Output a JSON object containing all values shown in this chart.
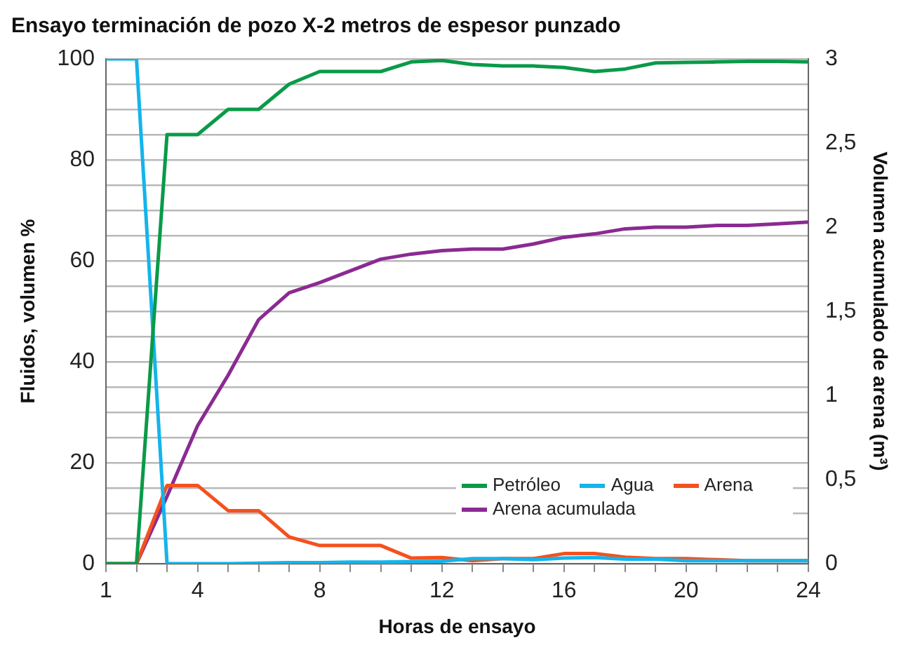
{
  "chart_data": {
    "type": "line",
    "title": "Ensayo terminación de pozo X-2 metros de espesor punzado",
    "xlabel": "Horas de ensayo",
    "ylabel": "Fluidos, volumen %",
    "y2label": "Volumen acumulado de arena (m³)",
    "x": [
      1,
      2,
      3,
      4,
      5,
      6,
      7,
      8,
      9,
      10,
      11,
      12,
      13,
      14,
      15,
      16,
      17,
      18,
      19,
      20,
      21,
      22,
      23,
      24
    ],
    "xlim": [
      1,
      24
    ],
    "xticks": [
      1,
      {
        "value": 2,
        "label": null
      },
      {
        "value": 3,
        "label": null
      },
      4,
      {
        "value": 5,
        "label": null
      },
      {
        "value": 6,
        "label": null
      },
      {
        "value": 7,
        "label": null
      },
      8,
      {
        "value": 9,
        "label": null
      },
      {
        "value": 10,
        "label": null
      },
      {
        "value": 11,
        "label": null
      },
      12,
      {
        "value": 13,
        "label": null
      },
      {
        "value": 14,
        "label": null
      },
      {
        "value": 15,
        "label": null
      },
      16,
      {
        "value": 17,
        "label": null
      },
      {
        "value": 18,
        "label": null
      },
      {
        "value": 19,
        "label": null
      },
      20,
      {
        "value": 21,
        "label": null
      },
      {
        "value": 22,
        "label": null
      },
      {
        "value": 23,
        "label": null
      },
      24
    ],
    "ylim": [
      0,
      100
    ],
    "yticks": [
      0,
      {
        "value": 5,
        "label": null
      },
      {
        "value": 10,
        "label": null
      },
      {
        "value": 15,
        "label": null
      },
      20,
      {
        "value": 25,
        "label": null
      },
      {
        "value": 30,
        "label": null
      },
      {
        "value": 35,
        "label": null
      },
      40,
      {
        "value": 45,
        "label": null
      },
      {
        "value": 50,
        "label": null
      },
      {
        "value": 55,
        "label": null
      },
      60,
      {
        "value": 65,
        "label": null
      },
      {
        "value": 70,
        "label": null
      },
      {
        "value": 75,
        "label": null
      },
      80,
      {
        "value": 85,
        "label": null
      },
      {
        "value": 90,
        "label": null
      },
      {
        "value": 95,
        "label": null
      },
      100
    ],
    "y2lim": [
      0,
      3
    ],
    "y2ticks": [
      0,
      {
        "value": 0.5,
        "label": "0,5"
      },
      1,
      {
        "value": 1.5,
        "label": "1,5"
      },
      2,
      {
        "value": 2.5,
        "label": "2,5"
      },
      3
    ],
    "grid": "y",
    "legend": "bottom right",
    "marker": "none",
    "line_style": "solid",
    "series": [
      {
        "name": "Petróleo",
        "color": "#0a9a48",
        "values": [
          0,
          0,
          85,
          85,
          90,
          90,
          95,
          97.5,
          97.5,
          97.5,
          99.4,
          99.7,
          98.9,
          98.6,
          98.6,
          98.3,
          97.5,
          98,
          99.2,
          99.3,
          99.4,
          99.5,
          99.5,
          99.4
        ]
      },
      {
        "name": "Agua",
        "color": "#14b4ec",
        "values": [
          100,
          100,
          0,
          0,
          0,
          0.1,
          0.2,
          0.2,
          0.3,
          0.3,
          0.4,
          0.5,
          1,
          1,
          0.8,
          1.1,
          1.2,
          0.9,
          0.9,
          0.6,
          0.6,
          0.6,
          0.6,
          0.6
        ]
      },
      {
        "name": "Arena",
        "color": "#f4511e",
        "values": [
          0,
          0,
          15.5,
          15.5,
          10.5,
          10.5,
          5.3,
          3.6,
          3.6,
          3.6,
          1.1,
          1.2,
          0.6,
          1,
          1,
          2,
          2,
          1.3,
          1,
          1,
          0.8,
          0.6,
          0.6,
          0.6
        ]
      },
      {
        "name": "Arena acumulada",
        "color": "#8b2a92",
        "axis": "y2",
        "values": [
          null,
          0,
          0.4,
          0.82,
          1.12,
          1.45,
          1.61,
          1.67,
          1.74,
          1.81,
          1.84,
          1.86,
          1.87,
          1.87,
          1.9,
          1.94,
          1.96,
          1.99,
          2,
          2,
          2.01,
          2.01,
          2.02,
          2.03
        ]
      }
    ]
  }
}
